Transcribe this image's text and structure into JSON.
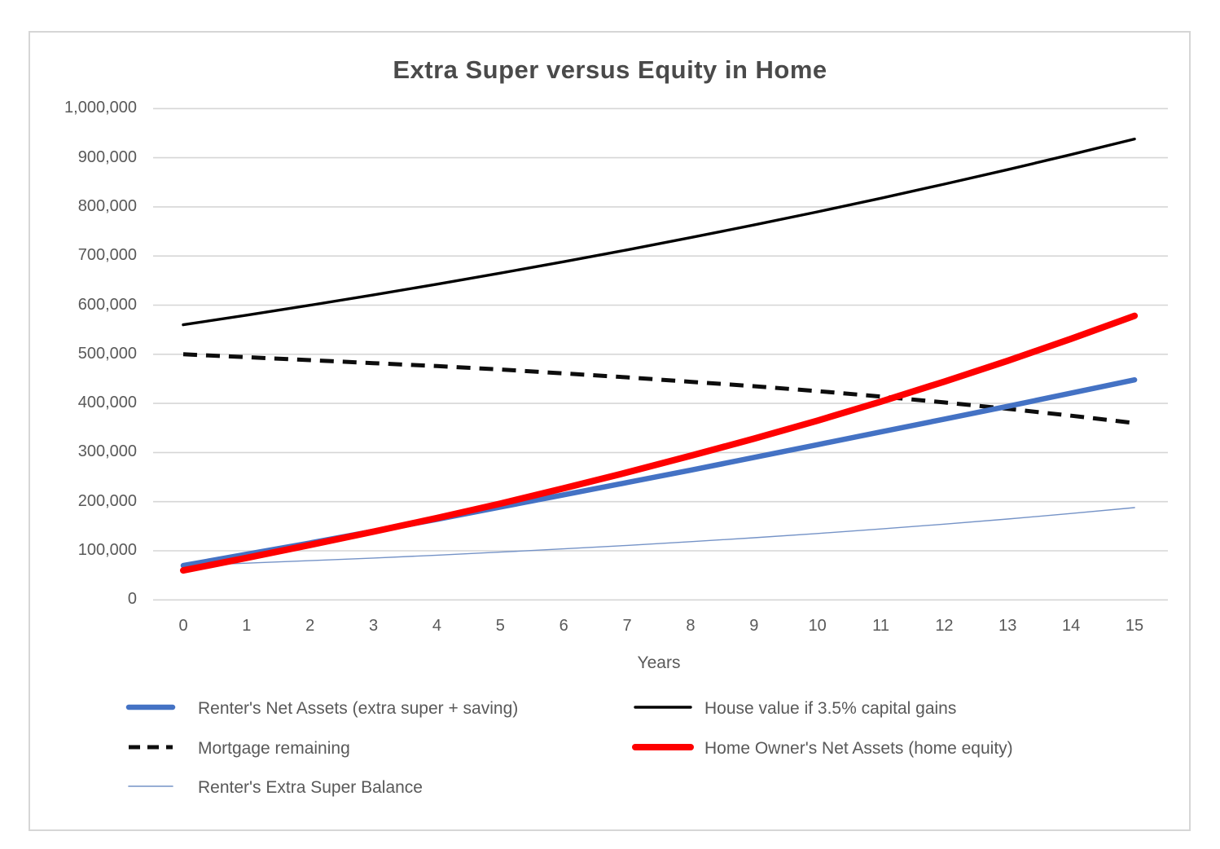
{
  "chart_data": {
    "type": "line",
    "title": "Extra Super versus Equity in Home",
    "xlabel": "Years",
    "ylabel": "",
    "x": [
      0,
      1,
      2,
      3,
      4,
      5,
      6,
      7,
      8,
      9,
      10,
      11,
      12,
      13,
      14,
      15
    ],
    "x_tick_labels": [
      "0",
      "1",
      "2",
      "3",
      "4",
      "5",
      "6",
      "7",
      "8",
      "9",
      "10",
      "11",
      "12",
      "13",
      "14",
      "15"
    ],
    "ylim": [
      0,
      1000000
    ],
    "y_tick_interval": 100000,
    "y_tick_labels": [
      "0",
      "100,000",
      "200,000",
      "300,000",
      "400,000",
      "500,000",
      "600,000",
      "700,000",
      "800,000",
      "900,000",
      "1,000,000"
    ],
    "grid": "horizontal",
    "legend_position": "bottom",
    "series": [
      {
        "id": "renter-net-assets",
        "name": "Renter's Net Assets (extra super + saving)",
        "color": "#4472c4",
        "stroke_width": 6.5,
        "dash": null,
        "values": [
          70000,
          93000,
          116000,
          140000,
          164000,
          189000,
          214000,
          239000,
          264000,
          290000,
          316000,
          342000,
          368000,
          394000,
          421000,
          448000
        ]
      },
      {
        "id": "house-value",
        "name": "House value if 3.5% capital gains",
        "color": "#000000",
        "stroke_width": 3.4,
        "dash": null,
        "values": [
          560000,
          579600,
          599900,
          620900,
          642600,
          665100,
          688400,
          712500,
          737400,
          763200,
          789900,
          817600,
          846200,
          875800,
          906500,
          938200
        ]
      },
      {
        "id": "mortgage-remaining",
        "name": "Mortgage remaining",
        "color": "#0d0d0d",
        "stroke_width": 5,
        "dash": "17 11",
        "values": [
          500000,
          494000,
          488000,
          482000,
          476000,
          469000,
          461000,
          453000,
          444000,
          435000,
          425000,
          414000,
          402000,
          389000,
          375000,
          360000
        ]
      },
      {
        "id": "home-owner-net-assets",
        "name": "Home Owner's Net Assets (home equity)",
        "color": "#fe0000",
        "stroke_width": 8,
        "dash": null,
        "values": [
          60000,
          85600,
          111900,
          138900,
          166600,
          196100,
          227400,
          259500,
          293400,
          328200,
          364900,
          403600,
          444200,
          486800,
          531500,
          578200
        ]
      },
      {
        "id": "renter-extra-super",
        "name": "Renter's Extra Super Balance",
        "color": "#7593c7",
        "stroke_width": 1.4,
        "dash": null,
        "values": [
          70000,
          74800,
          79900,
          85300,
          91100,
          97300,
          103900,
          111000,
          118500,
          126600,
          135200,
          144400,
          154200,
          164700,
          175900,
          187900
        ]
      }
    ],
    "colors": {
      "gridline": "#d6d6d6",
      "axis_text": "#595959",
      "title_text": "#4a4a4a"
    }
  }
}
